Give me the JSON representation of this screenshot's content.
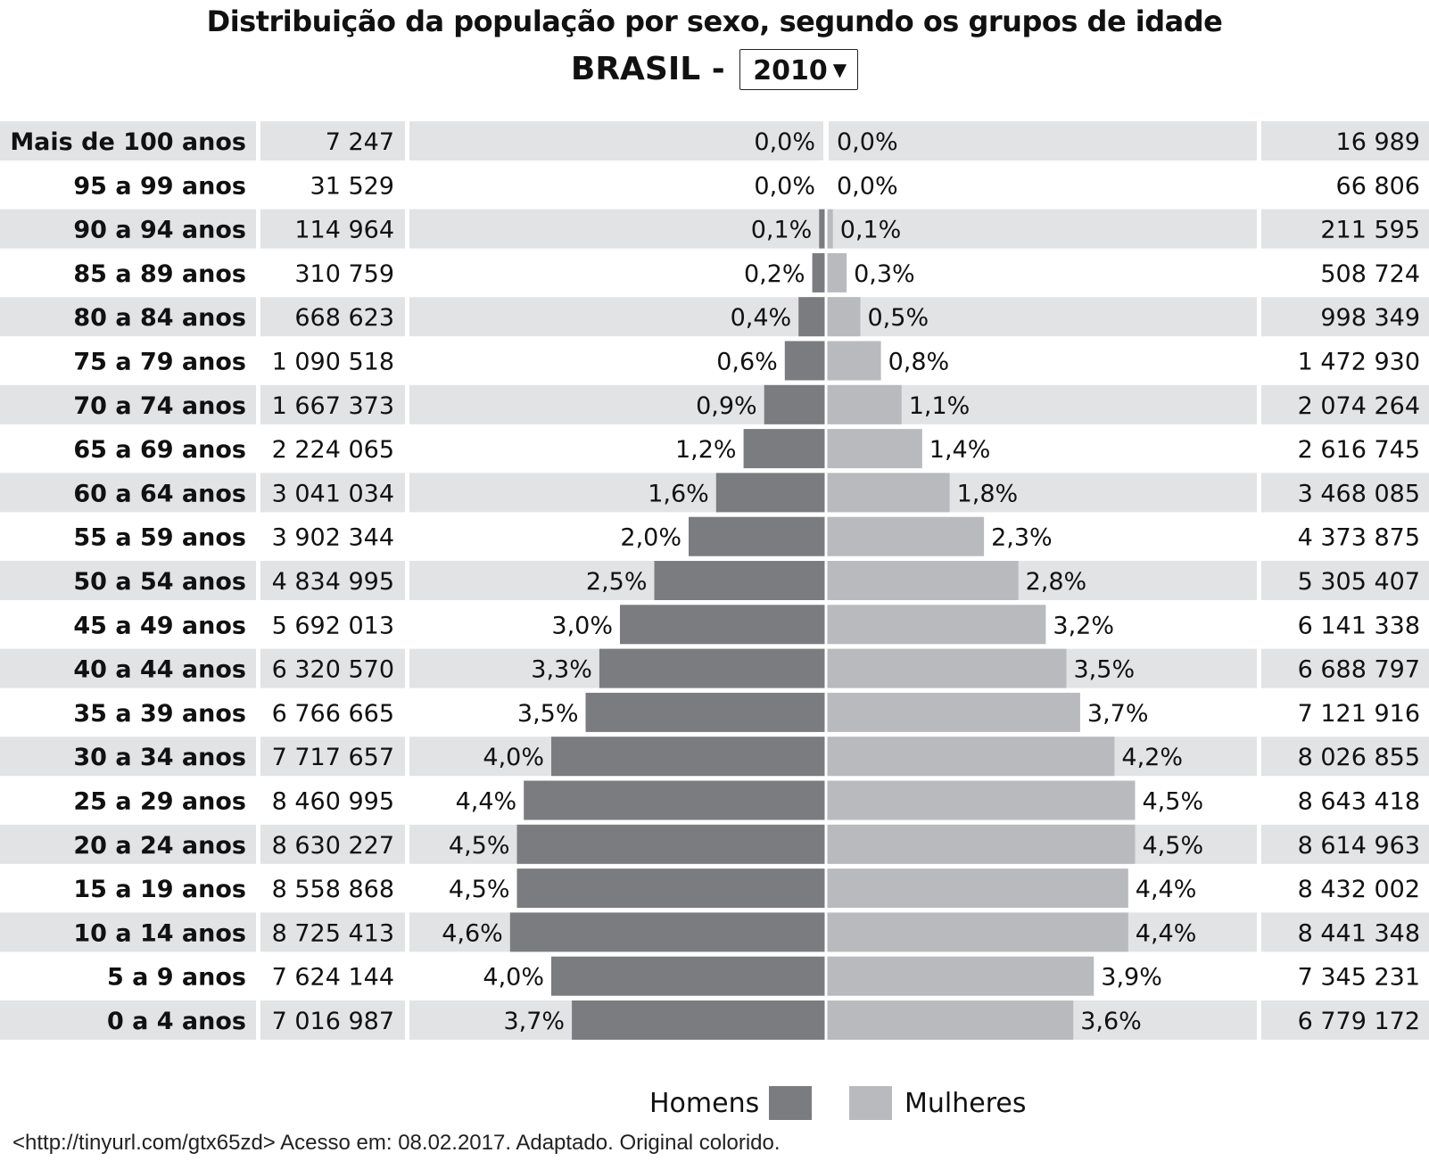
{
  "title": "Distribuição da população por sexo, segundo os grupos de idade",
  "subtitle": {
    "country": "BRASIL -",
    "year": "2010"
  },
  "legend": {
    "men": "Homens",
    "women": "Mulheres"
  },
  "source": "<http://tinyurl.com/gtx65zd> Acesso em: 08.02.2017. Adaptado. Original colorido.",
  "colors": {
    "men": "#7b7c7f",
    "women": "#b9babd",
    "row_shade": "#e2e3e5"
  },
  "chart_data": {
    "type": "bar",
    "orientation": "horizontal-population-pyramid",
    "categories": [
      "Mais de 100 anos",
      "95 a 99 anos",
      "90 a 94 anos",
      "85 a 89 anos",
      "80 a 84 anos",
      "75 a 79 anos",
      "70 a 74 anos",
      "65 a 69 anos",
      "60 a 64 anos",
      "55 a 59 anos",
      "50 a 54 anos",
      "45 a 49 anos",
      "40 a 44 anos",
      "35 a 39 anos",
      "30 a 34 anos",
      "25 a 29 anos",
      "20 a 24 anos",
      "15 a 19 anos",
      "10 a 14 anos",
      "5 a 9 anos",
      "0 a 4 anos"
    ],
    "series": [
      {
        "name": "Homens",
        "counts": [
          "7 247",
          "31 529",
          "114 964",
          "310 759",
          "668 623",
          "1 090 518",
          "1 667 373",
          "2 224 065",
          "3 041 034",
          "3 902 344",
          "4 834 995",
          "5 692 013",
          "6 320 570",
          "6 766 665",
          "7 717 657",
          "8 460 995",
          "8 630 227",
          "8 558 868",
          "8 725 413",
          "7 624 144",
          "7 016 987"
        ],
        "percent_labels": [
          "0,0%",
          "0,0%",
          "0,1%",
          "0,2%",
          "0,4%",
          "0,6%",
          "0,9%",
          "1,2%",
          "1,6%",
          "2,0%",
          "2,5%",
          "3,0%",
          "3,3%",
          "3,5%",
          "4,0%",
          "4,4%",
          "4,5%",
          "4,5%",
          "4,6%",
          "4,0%",
          "3,7%"
        ],
        "values": [
          0.0,
          0.0,
          0.1,
          0.2,
          0.4,
          0.6,
          0.9,
          1.2,
          1.6,
          2.0,
          2.5,
          3.0,
          3.3,
          3.5,
          4.0,
          4.4,
          4.5,
          4.5,
          4.6,
          4.0,
          3.7
        ]
      },
      {
        "name": "Mulheres",
        "counts": [
          "16 989",
          "66 806",
          "211 595",
          "508 724",
          "998 349",
          "1 472 930",
          "2 074 264",
          "2 616 745",
          "3 468 085",
          "4 373 875",
          "5 305 407",
          "6 141 338",
          "6 688 797",
          "7 121 916",
          "8 026 855",
          "8 643 418",
          "8 614 963",
          "8 432 002",
          "8 441 348",
          "7 345 231",
          "6 779 172"
        ],
        "percent_labels": [
          "0,0%",
          "0,0%",
          "0,1%",
          "0,3%",
          "0,5%",
          "0,8%",
          "1,1%",
          "1,4%",
          "1,8%",
          "2,3%",
          "2,8%",
          "3,2%",
          "3,5%",
          "3,7%",
          "4,2%",
          "4,5%",
          "4,5%",
          "4,4%",
          "4,4%",
          "3,9%",
          "3,6%"
        ],
        "values": [
          0.0,
          0.0,
          0.1,
          0.3,
          0.5,
          0.8,
          1.1,
          1.4,
          1.8,
          2.3,
          2.8,
          3.2,
          3.5,
          3.7,
          4.2,
          4.5,
          4.5,
          4.4,
          4.4,
          3.9,
          3.6
        ]
      }
    ],
    "legend_position": "bottom-center"
  }
}
